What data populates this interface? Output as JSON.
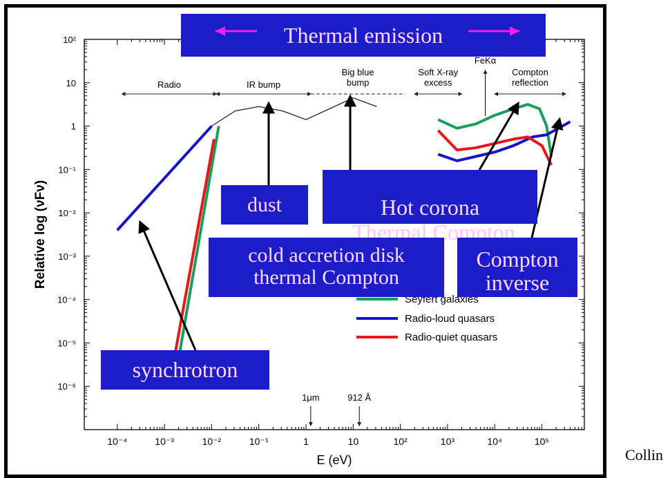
{
  "chart_data": {
    "type": "line",
    "title": "",
    "xlabel": "E (eV)",
    "ylabel": "Relative log (νFν)",
    "xscale": "log",
    "yscale": "log",
    "xlim": [
      -4.7,
      5.9
    ],
    "ylim": [
      -7.0,
      2.0
    ],
    "x_ticks": [
      "10⁻⁴",
      "10⁻³",
      "10⁻²",
      "10⁻¹",
      "1",
      "10",
      "10²",
      "10³",
      "10⁴",
      "10⁵"
    ],
    "y_ticks": [
      "10²",
      "10",
      "1",
      "10⁻¹",
      "10⁻²",
      "10⁻³",
      "10⁻⁴",
      "10⁻⁵",
      "10⁻⁶"
    ],
    "bands": [
      "Radio",
      "IR bump",
      "Big blue bump",
      "Soft X-ray excess",
      "FeKα",
      "Compton reflection"
    ],
    "wavelength_markers": [
      "1μm",
      "912 Å"
    ],
    "legend": [
      "Seyfert galaxies",
      "Radio-loud quasars",
      "Radio-quiet quasars"
    ],
    "colors": {
      "seyfert": "#1a9e5a",
      "radio_loud": "#1414c8",
      "radio_quiet": "#e81818",
      "template": "#333333",
      "box": "#1c1cc8",
      "box_text": "#ffd9ff",
      "arrow": "#000000",
      "thermal_arrow": "#ee22ee"
    },
    "series": [
      {
        "name": "Seyfert galaxies",
        "segments": [
          {
            "x": [
              -2.8,
              -1.85
            ],
            "y": [
              -6.0,
              0.0
            ]
          },
          {
            "x": [
              2.8,
              3.2,
              3.6,
              4.0,
              4.4,
              4.7,
              4.95,
              5.1,
              5.2
            ],
            "y": [
              0.15,
              -0.05,
              0.05,
              0.25,
              0.4,
              0.5,
              0.4,
              0.0,
              -0.7
            ]
          }
        ]
      },
      {
        "name": "Radio-loud quasars",
        "segments": [
          {
            "x": [
              -4.0,
              -2.0
            ],
            "y": [
              -2.4,
              0.0
            ]
          },
          {
            "x": [
              2.8,
              3.2,
              3.6,
              4.0,
              4.4,
              4.8,
              5.1,
              5.6
            ],
            "y": [
              -0.65,
              -0.8,
              -0.7,
              -0.6,
              -0.45,
              -0.25,
              -0.2,
              0.1
            ]
          }
        ]
      },
      {
        "name": "Radio-quiet quasars",
        "segments": [
          {
            "x": [
              -2.9,
              -1.95
            ],
            "y": [
              -6.0,
              -0.3
            ]
          },
          {
            "x": [
              2.8,
              3.2,
              3.6,
              4.0,
              4.4,
              4.7,
              5.0,
              5.2
            ],
            "y": [
              -0.1,
              -0.55,
              -0.5,
              -0.4,
              -0.3,
              -0.25,
              -0.45,
              -0.9
            ]
          }
        ]
      },
      {
        "name": "",
        "segments": [
          {
            "x": [
              -2.0,
              -1.5,
              -1.0,
              -0.5,
              0.0,
              0.5,
              1.0,
              1.5
            ],
            "y": [
              0.0,
              0.35,
              0.45,
              0.35,
              0.15,
              0.4,
              0.65,
              0.45
            ]
          }
        ]
      }
    ]
  },
  "thermal": {
    "label": "Thermal emission"
  },
  "annotations": [
    {
      "id": "dust",
      "lines": [
        "dust"
      ]
    },
    {
      "id": "hot",
      "lines": [
        "Hot corona"
      ]
    },
    {
      "id": "thermal-compton",
      "lines": [
        "Thermal Compton"
      ]
    },
    {
      "id": "cold",
      "lines": [
        "cold accretion disk",
        "thermal Compton"
      ]
    },
    {
      "id": "compton",
      "lines": [
        "Compton",
        "inverse"
      ]
    },
    {
      "id": "sync",
      "lines": [
        "synchrotron"
      ]
    }
  ],
  "credit": "Collin"
}
